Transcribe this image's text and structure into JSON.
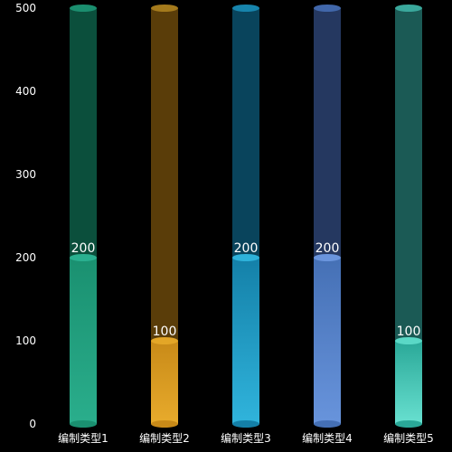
{
  "chart_data": {
    "type": "bar",
    "title": "",
    "xlabel": "",
    "ylabel": "",
    "ylim": [
      0,
      500
    ],
    "yticks": [
      0,
      100,
      200,
      300,
      400,
      500
    ],
    "grid": false,
    "background_max": 500,
    "categories": [
      "编制类型1",
      "编制类型2",
      "编制类型3",
      "编制类型4",
      "编制类型5"
    ],
    "values": [
      200,
      100,
      200,
      200,
      100
    ],
    "value_labels": [
      "200",
      "100",
      "200",
      "200",
      "100"
    ],
    "colors": [
      {
        "base": "#1a9070",
        "light": "#2aae8c",
        "track": "#0b4f3c",
        "top": "#2ab090",
        "trackTop": "#1b8e6f"
      },
      {
        "base": "#c88a18",
        "light": "#e8ab2c",
        "track": "#5a3d09",
        "top": "#e3a627",
        "trackTop": "#a47a1c"
      },
      {
        "base": "#1480a8",
        "light": "#30b4dc",
        "track": "#09445c",
        "top": "#2eb2da",
        "trackTop": "#1784ac"
      },
      {
        "base": "#4570b5",
        "light": "#6894dc",
        "track": "#253860",
        "top": "#6a95dd",
        "trackTop": "#4167aa"
      },
      {
        "base": "#2aa898",
        "light": "#68e0d0",
        "track": "#1b5a55",
        "top": "#5ad8c6",
        "trackTop": "#3aa89c"
      }
    ]
  }
}
